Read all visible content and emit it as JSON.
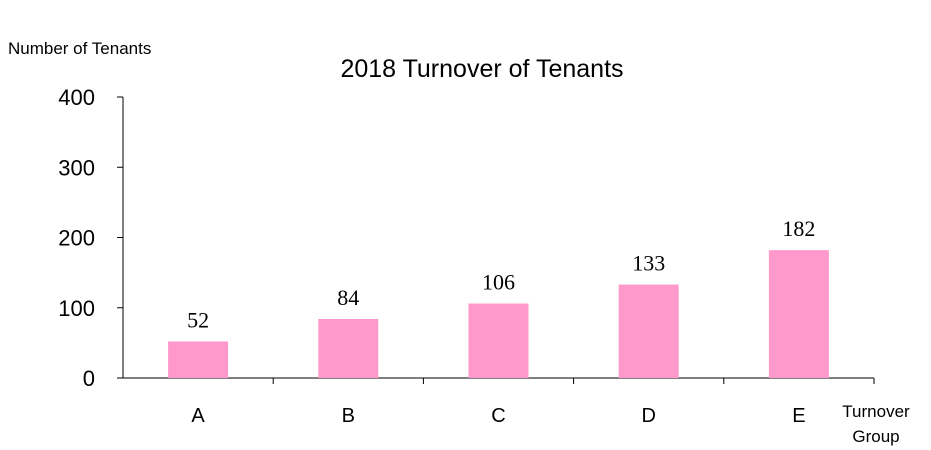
{
  "chart_data": {
    "type": "bar",
    "title": "2018 Turnover of Tenants",
    "ylabel": "Number of Tenants",
    "xlabel_lines": [
      "Turnover",
      "Group"
    ],
    "categories": [
      "A",
      "B",
      "C",
      "D",
      "E"
    ],
    "values": [
      52,
      84,
      106,
      133,
      182
    ],
    "ylim": [
      0,
      400
    ],
    "yticks": [
      0,
      100,
      200,
      300,
      400
    ],
    "grid": false,
    "legend": "none",
    "bar_color": "#ff99cc"
  }
}
